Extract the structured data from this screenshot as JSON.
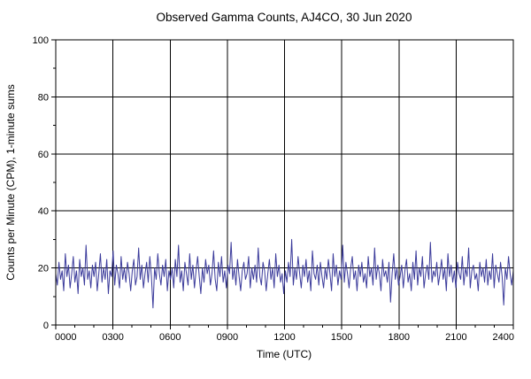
{
  "chart_data": {
    "type": "line",
    "title": "Observed Gamma Counts, AJ4CO, 30 Jun 2020",
    "xlabel": "Time (UTC)",
    "ylabel": "Counts per Minute (CPM), 1-minute sums",
    "ylim": [
      0,
      100
    ],
    "xlim_minutes": [
      0,
      1440
    ],
    "yticks": [
      0,
      20,
      40,
      60,
      80,
      100
    ],
    "xtick_labels": [
      "0000",
      "0300",
      "0600",
      "0900",
      "1200",
      "1500",
      "1800",
      "2100",
      "2400"
    ],
    "grid": true,
    "legend": "none",
    "line_color": "#3b3b9b",
    "values": [
      18,
      14,
      22,
      16,
      19,
      12,
      25,
      17,
      21,
      13,
      18,
      24,
      15,
      19,
      11,
      23,
      17,
      20,
      14,
      28,
      16,
      19,
      13,
      21,
      17,
      22,
      12,
      18,
      25,
      15,
      20,
      16,
      23,
      11,
      19,
      17,
      26,
      14,
      21,
      18,
      13,
      24,
      16,
      20,
      15,
      22,
      18,
      12,
      19,
      23,
      14,
      17,
      27,
      16,
      21,
      13,
      18,
      22,
      15,
      24,
      17,
      6,
      20,
      16,
      25,
      18,
      14,
      21,
      17,
      23,
      12,
      19,
      16,
      20,
      13,
      23,
      17,
      28,
      15,
      19,
      12,
      22,
      18,
      14,
      25,
      16,
      21,
      13,
      19,
      24,
      17,
      11,
      20,
      15,
      23,
      18,
      21,
      14,
      18,
      26,
      16,
      12,
      22,
      17,
      24,
      15,
      19,
      13,
      21,
      18,
      29,
      16,
      20,
      14,
      23,
      17,
      12,
      19,
      22,
      16,
      18,
      24,
      13,
      20,
      16,
      21,
      15,
      27,
      17,
      14,
      22,
      19,
      12,
      18,
      23,
      16,
      20,
      13,
      25,
      17,
      21,
      15,
      18,
      11,
      19,
      15,
      22,
      17,
      30,
      14,
      20,
      16,
      24,
      18,
      13,
      21,
      17,
      23,
      15,
      19,
      12,
      26,
      18,
      16,
      21,
      14,
      22,
      17,
      13,
      20,
      16,
      23,
      18,
      12,
      25,
      17,
      21,
      14,
      19,
      16,
      28,
      15,
      22,
      18,
      13,
      20,
      24,
      16,
      19,
      12,
      21,
      17,
      22,
      15,
      18,
      13,
      24,
      17,
      20,
      14,
      27,
      16,
      21,
      18,
      12,
      23,
      17,
      19,
      15,
      22,
      8,
      18,
      25,
      16,
      20,
      14,
      17,
      21,
      13,
      19,
      23,
      15,
      18,
      12,
      22,
      16,
      26,
      14,
      20,
      17,
      24,
      13,
      18,
      21,
      16,
      29,
      15,
      19,
      17,
      22,
      14,
      18,
      23,
      16,
      20,
      12,
      25,
      17,
      21,
      15,
      19,
      13,
      22,
      18,
      16,
      24,
      14,
      20,
      17,
      27,
      13,
      19,
      21,
      16,
      18,
      12,
      22,
      17,
      20,
      15,
      23,
      14,
      19,
      16,
      25,
      13,
      21,
      18,
      15,
      22,
      17,
      7,
      20,
      16,
      24,
      18,
      14,
      19
    ]
  }
}
